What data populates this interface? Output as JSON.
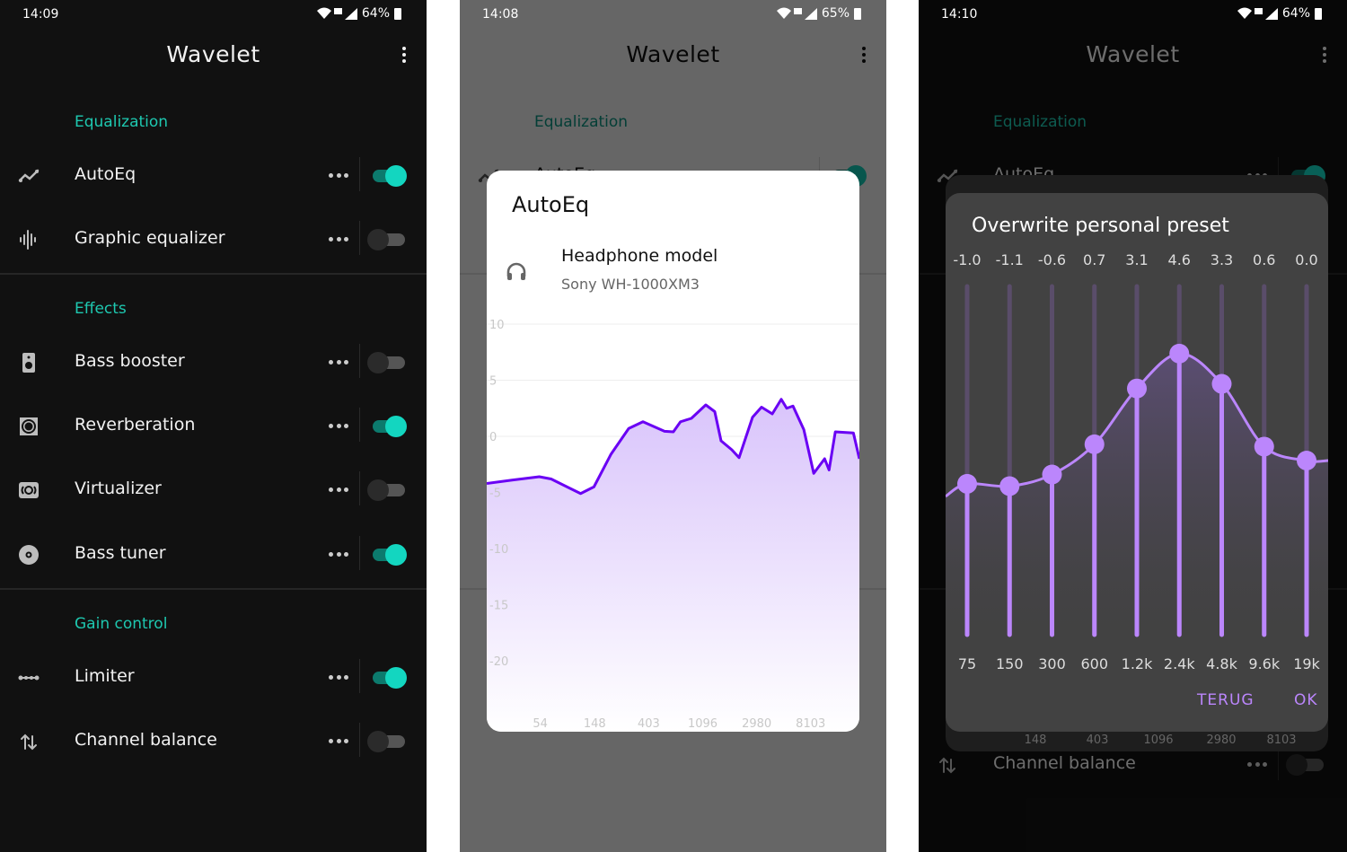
{
  "app": {
    "title": "Wavelet",
    "menu_icon": "more-vert-icon",
    "sections": [
      {
        "header": "Equalization",
        "items": [
          {
            "label": "AutoEq",
            "icon": "trend-line-icon",
            "enabled": true
          },
          {
            "label": "Graphic equalizer",
            "icon": "waveform-icon",
            "enabled": false
          }
        ]
      },
      {
        "header": "Effects",
        "items": [
          {
            "label": "Bass booster",
            "icon": "speaker-icon",
            "enabled": false
          },
          {
            "label": "Reverberation",
            "icon": "surround-icon",
            "enabled": true
          },
          {
            "label": "Virtualizer",
            "icon": "surround-sound-icon",
            "enabled": false
          },
          {
            "label": "Bass tuner",
            "icon": "disc-icon",
            "enabled": true
          }
        ]
      },
      {
        "header": "Gain control",
        "items": [
          {
            "label": "Limiter",
            "icon": "limiter-icon",
            "enabled": true
          },
          {
            "label": "Channel balance",
            "icon": "swap-vert-icon",
            "enabled": false
          }
        ]
      }
    ]
  },
  "screens": [
    {
      "time": "14:09",
      "battery": "64%",
      "theme": "dark"
    },
    {
      "time": "14:08",
      "battery": "65%",
      "theme": "light"
    },
    {
      "time": "14:10",
      "battery": "64%",
      "theme": "dark"
    }
  ],
  "autoeq_dialog": {
    "title": "AutoEq",
    "headphone_label": "Headphone model",
    "headphone_value": "Sony WH-1000XM3",
    "icon": "headphones-icon"
  },
  "eq_dialog": {
    "title": "Overwrite personal preset",
    "back_label": "TERUG",
    "ok_label": "OK",
    "background_dialog_ticks": [
      "148",
      "403",
      "1096",
      "2980",
      "8103"
    ]
  },
  "colors": {
    "accent": "#1ec8b0",
    "toggle_on": "#13d6c0",
    "autoeq_line": "#6a00f4",
    "eq_accent": "#bb86fc"
  },
  "chart_data": [
    {
      "type": "area",
      "xscale": "log",
      "xlim": [
        20,
        20000
      ],
      "ylim": [
        -20,
        10
      ],
      "yticks": [
        "10",
        "5",
        "0",
        "-5",
        "-10",
        "-15",
        "-20"
      ],
      "xticks": [
        "54",
        "148",
        "403",
        "1096",
        "2980",
        "8103"
      ],
      "grid": true,
      "x": [
        20,
        32,
        53,
        66,
        114,
        146,
        200,
        278,
        362,
        540,
        636,
        726,
        888,
        1160,
        1370,
        1540,
        1880,
        2150,
        2760,
        3260,
        3980,
        4700,
        5200,
        5840,
        7140,
        8580,
        10500,
        11400,
        12800,
        17900,
        20000
      ],
      "y": [
        -4.2,
        -3.9,
        -3.6,
        -3.8,
        -5.1,
        -4.5,
        -1.6,
        0.7,
        1.3,
        0.45,
        0.4,
        1.3,
        1.6,
        2.8,
        2.2,
        -0.4,
        -1.2,
        -1.9,
        1.7,
        2.6,
        2.0,
        3.3,
        2.5,
        2.7,
        0.6,
        -3.3,
        -2.0,
        -3.0,
        0.4,
        0.3,
        -2.0
      ]
    },
    {
      "type": "line",
      "categories": [
        "75",
        "150",
        "300",
        "600",
        "1.2k",
        "2.4k",
        "4.8k",
        "9.6k",
        "19k"
      ],
      "values": [
        -1.0,
        -1.1,
        -0.6,
        0.7,
        3.1,
        4.6,
        3.3,
        0.6,
        0.0
      ],
      "value_labels": [
        "-1.0",
        "-1.1",
        "-0.6",
        "0.7",
        "3.1",
        "4.6",
        "3.3",
        "0.6",
        "0.0"
      ],
      "ylim": [
        -7.5,
        7.5
      ]
    }
  ]
}
